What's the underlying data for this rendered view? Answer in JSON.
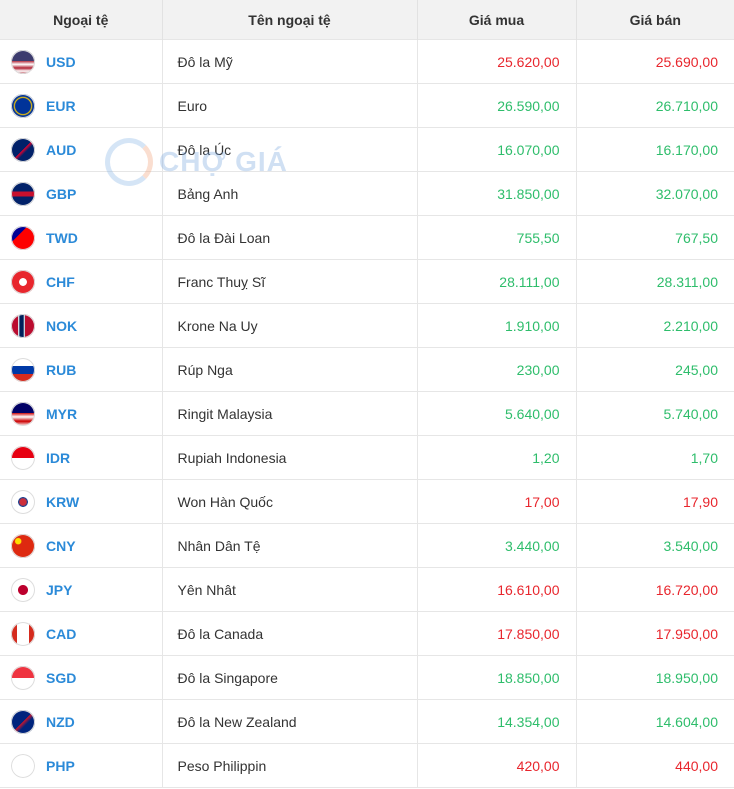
{
  "table": {
    "header": [
      "Ngoại tệ",
      "Tên ngoại tệ",
      "Giá mua",
      "Giá bán"
    ],
    "rows": [
      {
        "code": "USD",
        "name": "Đô la Mỹ",
        "buy": "25.620,00",
        "sell": "25.690,00",
        "color": "#e8262d"
      },
      {
        "code": "EUR",
        "name": "Euro",
        "buy": "26.590,00",
        "sell": "26.710,00",
        "color": "#2ebd6b"
      },
      {
        "code": "AUD",
        "name": "Đô la Úc",
        "buy": "16.070,00",
        "sell": "16.170,00",
        "color": "#2ebd6b"
      },
      {
        "code": "GBP",
        "name": "Bảng Anh",
        "buy": "31.850,00",
        "sell": "32.070,00",
        "color": "#2ebd6b"
      },
      {
        "code": "TWD",
        "name": "Đô la Đài Loan",
        "buy": "755,50",
        "sell": "767,50",
        "color": "#2ebd6b"
      },
      {
        "code": "CHF",
        "name": "Franc Thuỵ Sĩ",
        "buy": "28.111,00",
        "sell": "28.311,00",
        "color": "#2ebd6b"
      },
      {
        "code": "NOK",
        "name": "Krone Na Uy",
        "buy": "1.910,00",
        "sell": "2.210,00",
        "color": "#2ebd6b"
      },
      {
        "code": "RUB",
        "name": "Rúp Nga",
        "buy": "230,00",
        "sell": "245,00",
        "color": "#2ebd6b"
      },
      {
        "code": "MYR",
        "name": "Ringit Malaysia",
        "buy": "5.640,00",
        "sell": "5.740,00",
        "color": "#2ebd6b"
      },
      {
        "code": "IDR",
        "name": "Rupiah Indonesia",
        "buy": "1,20",
        "sell": "1,70",
        "color": "#2ebd6b"
      },
      {
        "code": "KRW",
        "name": "Won Hàn Quốc",
        "buy": "17,00",
        "sell": "17,90",
        "color": "#e8262d"
      },
      {
        "code": "CNY",
        "name": "Nhân Dân Tệ",
        "buy": "3.440,00",
        "sell": "3.540,00",
        "color": "#2ebd6b"
      },
      {
        "code": "JPY",
        "name": "Yên Nhât",
        "buy": "16.610,00",
        "sell": "16.720,00",
        "color": "#e8262d"
      },
      {
        "code": "CAD",
        "name": "Đô la Canada",
        "buy": "17.850,00",
        "sell": "17.950,00",
        "color": "#e8262d"
      },
      {
        "code": "SGD",
        "name": "Đô la Singapore",
        "buy": "18.850,00",
        "sell": "18.950,00",
        "color": "#2ebd6b"
      },
      {
        "code": "NZD",
        "name": "Đô la New Zealand",
        "buy": "14.354,00",
        "sell": "14.604,00",
        "color": "#2ebd6b"
      },
      {
        "code": "PHP",
        "name": "Peso Philippin",
        "buy": "420,00",
        "sell": "440,00",
        "color": "#e8262d"
      }
    ]
  },
  "watermark": "CHỢ GIÁ"
}
